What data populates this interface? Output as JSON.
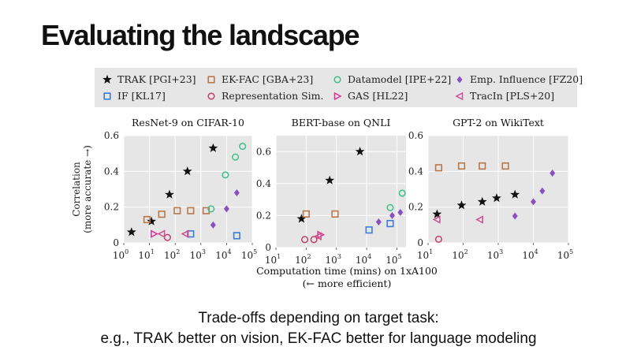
{
  "slide": {
    "title": "Evaluating the landscape",
    "caption_line1": "Trade-offs depending on target task:",
    "caption_line2": "e.g., TRAK better on vision, EK-FAC better for language modeling"
  },
  "legend": [
    {
      "key": "trak",
      "label": "TRAK [PGI+23]",
      "marker": "star",
      "color": "#111111"
    },
    {
      "key": "ekfac",
      "label": "EK-FAC [GBA+23]",
      "marker": "square",
      "color": "#b8784a"
    },
    {
      "key": "datamodel",
      "label": "Datamodel [IPE+22]",
      "marker": "circle",
      "color": "#3fbf8a"
    },
    {
      "key": "emp",
      "label": "Emp. Influence [FZ20]",
      "marker": "diamond",
      "color": "#8a4fc0"
    },
    {
      "key": "if",
      "label": "IF [KL17]",
      "marker": "square",
      "color": "#3b7dd8"
    },
    {
      "key": "repsim",
      "label": "Representation Sim.",
      "marker": "circle",
      "color": "#c0406a"
    },
    {
      "key": "gas",
      "label": "GAS [HL22]",
      "marker": "triangle-right",
      "color": "#e0339a"
    },
    {
      "key": "tracin",
      "label": "TracIn [PLS+20]",
      "marker": "triangle-left",
      "color": "#d04f8f"
    }
  ],
  "chart_data": [
    {
      "type": "scatter",
      "title": "ResNet-9 on CIFAR-10",
      "xscale": "log",
      "xlim": [
        1,
        100000
      ],
      "ylim": [
        0,
        0.6
      ],
      "yticks": [
        "0",
        "0.2",
        "0.4",
        "0.6"
      ],
      "ylabel": "Correlation",
      "ylabel2": "(more accurate →)",
      "series": [
        {
          "key": "trak",
          "points": [
            [
              2,
              0.06
            ],
            [
              12,
              0.12
            ],
            [
              60,
              0.27
            ],
            [
              300,
              0.4
            ],
            [
              3000,
              0.53
            ]
          ]
        },
        {
          "key": "ekfac",
          "points": [
            [
              8,
              0.13
            ],
            [
              30,
              0.16
            ],
            [
              120,
              0.18
            ],
            [
              400,
              0.18
            ],
            [
              1600,
              0.18
            ]
          ]
        },
        {
          "key": "datamodel",
          "points": [
            [
              2500,
              0.19
            ],
            [
              9000,
              0.38
            ],
            [
              22000,
              0.48
            ],
            [
              42000,
              0.54
            ]
          ]
        },
        {
          "key": "emp",
          "points": [
            [
              3000,
              0.1
            ],
            [
              10000,
              0.19
            ],
            [
              25000,
              0.28
            ]
          ]
        },
        {
          "key": "if",
          "points": [
            [
              400,
              0.05
            ],
            [
              25000,
              0.04
            ]
          ]
        },
        {
          "key": "repsim",
          "points": [
            [
              50,
              0.03
            ]
          ]
        },
        {
          "key": "gas",
          "points": [
            [
              15,
              0.05
            ]
          ]
        },
        {
          "key": "tracin",
          "points": [
            [
              30,
              0.05
            ],
            [
              250,
              0.05
            ]
          ]
        }
      ]
    },
    {
      "type": "scatter",
      "title": "BERT-base on QNLI",
      "xscale": "log",
      "xlim": [
        10,
        200000
      ],
      "ylim": [
        0,
        0.7
      ],
      "yticks": [
        "0",
        "0.2",
        "0.4",
        "0.6"
      ],
      "series": [
        {
          "key": "trak",
          "points": [
            [
              70,
              0.18
            ],
            [
              600,
              0.42
            ],
            [
              6000,
              0.6
            ]
          ]
        },
        {
          "key": "ekfac",
          "points": [
            [
              100,
              0.21
            ],
            [
              900,
              0.21
            ]
          ]
        },
        {
          "key": "datamodel",
          "points": [
            [
              60000,
              0.25
            ],
            [
              150000,
              0.34
            ]
          ]
        },
        {
          "key": "emp",
          "points": [
            [
              25000,
              0.16
            ],
            [
              70000,
              0.2
            ],
            [
              130000,
              0.22
            ]
          ]
        },
        {
          "key": "if",
          "points": [
            [
              12000,
              0.11
            ],
            [
              60000,
              0.15
            ]
          ]
        },
        {
          "key": "repsim",
          "points": [
            [
              90,
              0.05
            ],
            [
              180,
              0.05
            ]
          ]
        },
        {
          "key": "gas",
          "points": [
            [
              300,
              0.08
            ]
          ]
        },
        {
          "key": "tracin",
          "points": [
            [
              250,
              0.07
            ]
          ]
        }
      ]
    },
    {
      "type": "scatter",
      "title": "GPT-2 on WikiText",
      "xscale": "log",
      "xlim": [
        10,
        100000
      ],
      "ylim": [
        0,
        0.6
      ],
      "yticks": [
        "0",
        "0.2",
        "0.4",
        "0.6"
      ],
      "series": [
        {
          "key": "trak",
          "points": [
            [
              18,
              0.16
            ],
            [
              90,
              0.21
            ],
            [
              350,
              0.23
            ],
            [
              900,
              0.25
            ],
            [
              3000,
              0.27
            ]
          ]
        },
        {
          "key": "ekfac",
          "points": [
            [
              20,
              0.42
            ],
            [
              90,
              0.43
            ],
            [
              350,
              0.43
            ],
            [
              1600,
              0.43
            ]
          ]
        },
        {
          "key": "emp",
          "points": [
            [
              3000,
              0.15
            ],
            [
              10000,
              0.23
            ],
            [
              18000,
              0.29
            ],
            [
              35000,
              0.39
            ]
          ]
        },
        {
          "key": "repsim",
          "points": [
            [
              20,
              0.02
            ]
          ]
        },
        {
          "key": "tracin",
          "points": [
            [
              18,
              0.13
            ],
            [
              300,
              0.13
            ]
          ]
        }
      ]
    }
  ],
  "xlabel_line1": "Computation time (mins) on 1xA100",
  "xlabel_line2": "(← more efficient)"
}
